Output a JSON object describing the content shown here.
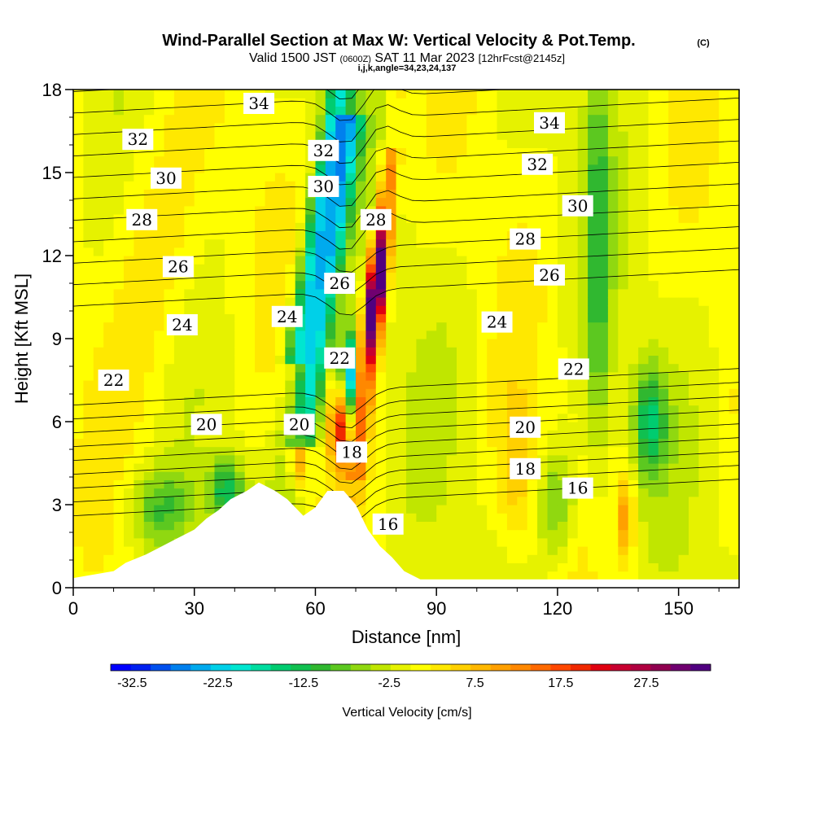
{
  "header": {
    "title": "Wind-Parallel Section at Max W: Vertical Velocity & Pot.Temp.",
    "copyright": "(C)",
    "valid_prefix": "Valid 1500 JST",
    "valid_utc": "(0600Z)",
    "valid_date": "SAT 11 Mar 2023",
    "forecast": "[12hrFcst@2145z]",
    "indices": "i,j,k,angle=34,23,24,137"
  },
  "chart_data": {
    "type": "heatmap",
    "xlabel": "Distance [nm]",
    "ylabel": "Height [Kft MSL]",
    "xlim": [
      0,
      165
    ],
    "ylim": [
      0,
      18
    ],
    "xticks": [
      "0",
      "30",
      "60",
      "90",
      "120",
      "150"
    ],
    "yticks": [
      "0",
      "3",
      "6",
      "9",
      "12",
      "15",
      "18"
    ],
    "colorbar": {
      "label": "Vertical Velocity [cm/s]",
      "tick_labels": [
        "-32.5",
        "-22.5",
        "-12.5",
        "-2.5",
        "7.5",
        "17.5",
        "27.5"
      ],
      "min": -35,
      "max": 35,
      "step": 2.5,
      "colors": [
        "#0000ff",
        "#0020f0",
        "#0050ee",
        "#0080ee",
        "#00aaee",
        "#00d0e8",
        "#00e6d0",
        "#00dda0",
        "#00cc70",
        "#10c050",
        "#30b830",
        "#5cc820",
        "#90d810",
        "#c0e600",
        "#e6f200",
        "#ffff00",
        "#ffe800",
        "#ffd000",
        "#ffb800",
        "#ffa000",
        "#ff8800",
        "#ff6a00",
        "#ff4800",
        "#f02800",
        "#e00010",
        "#c80030",
        "#b00040",
        "#900050",
        "#700070",
        "#500080"
      ]
    },
    "theta_contours": [
      16,
      18,
      20,
      22,
      24,
      26,
      28,
      30,
      32,
      34
    ],
    "theta_labels": [
      {
        "text": "34",
        "x": 46,
        "y": 17.5
      },
      {
        "text": "32",
        "x": 16,
        "y": 16.2
      },
      {
        "text": "32",
        "x": 62,
        "y": 15.8
      },
      {
        "text": "34",
        "x": 118,
        "y": 16.8
      },
      {
        "text": "32",
        "x": 115,
        "y": 15.3
      },
      {
        "text": "30",
        "x": 23,
        "y": 14.8
      },
      {
        "text": "30",
        "x": 62,
        "y": 14.5
      },
      {
        "text": "30",
        "x": 125,
        "y": 13.8
      },
      {
        "text": "28",
        "x": 17,
        "y": 13.3
      },
      {
        "text": "28",
        "x": 75,
        "y": 13.3
      },
      {
        "text": "28",
        "x": 112,
        "y": 12.6
      },
      {
        "text": "26",
        "x": 26,
        "y": 11.6
      },
      {
        "text": "26",
        "x": 66,
        "y": 11.0
      },
      {
        "text": "26",
        "x": 118,
        "y": 11.3
      },
      {
        "text": "24",
        "x": 27,
        "y": 9.5
      },
      {
        "text": "24",
        "x": 53,
        "y": 9.8
      },
      {
        "text": "24",
        "x": 105,
        "y": 9.6
      },
      {
        "text": "22",
        "x": 10,
        "y": 7.5
      },
      {
        "text": "22",
        "x": 66,
        "y": 8.3
      },
      {
        "text": "22",
        "x": 124,
        "y": 7.9
      },
      {
        "text": "20",
        "x": 33,
        "y": 5.9
      },
      {
        "text": "20",
        "x": 56,
        "y": 5.9
      },
      {
        "text": "20",
        "x": 112,
        "y": 5.8
      },
      {
        "text": "18",
        "x": 69,
        "y": 4.9
      },
      {
        "text": "18",
        "x": 112,
        "y": 4.3
      },
      {
        "text": "16",
        "x": 125,
        "y": 3.6
      },
      {
        "text": "16",
        "x": 78,
        "y": 2.3
      }
    ],
    "terrain_kft": [
      [
        0,
        0.35
      ],
      [
        10,
        0.6
      ],
      [
        13,
        0.9
      ],
      [
        18,
        1.2
      ],
      [
        22,
        1.5
      ],
      [
        26,
        1.8
      ],
      [
        30,
        2.1
      ],
      [
        33,
        2.5
      ],
      [
        36,
        2.8
      ],
      [
        39,
        3.2
      ],
      [
        43,
        3.5
      ],
      [
        46,
        3.8
      ],
      [
        50,
        3.5
      ],
      [
        53,
        3.2
      ],
      [
        55,
        2.9
      ],
      [
        57,
        2.6
      ],
      [
        60,
        2.9
      ],
      [
        63,
        3.5
      ],
      [
        67,
        3.5
      ],
      [
        70,
        3.0
      ],
      [
        73,
        2.1
      ],
      [
        76,
        1.5
      ],
      [
        79,
        1.1
      ],
      [
        82,
        0.6
      ],
      [
        86,
        0.3
      ],
      [
        165,
        0.3
      ]
    ]
  }
}
